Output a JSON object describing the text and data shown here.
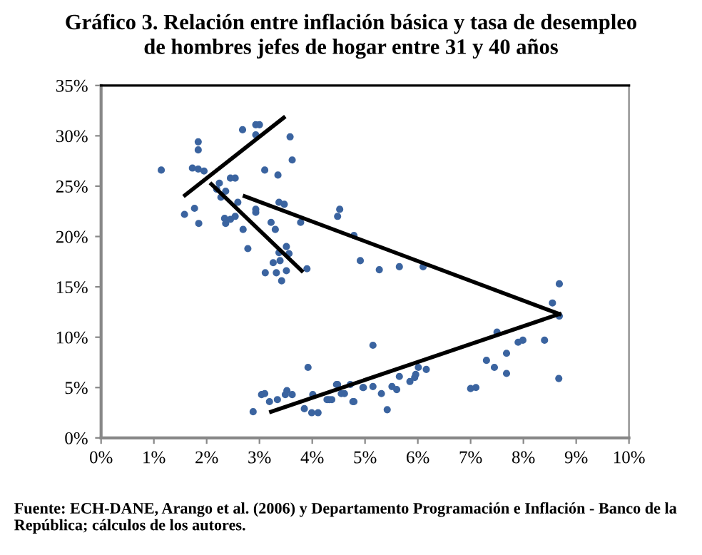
{
  "chart_data": {
    "type": "scatter",
    "title": "Gráfico 3. Relación entre inflación básica y tasa de desempleo\nde hombres jefes de hogar entre 31 y 40 años",
    "annotations": [
      "Fuente: ECH-DANE, Arango et al. (2006) y Departamento Programación e Inflación - Banco de la República; cálculos de los autores."
    ],
    "xlim": [
      0,
      10
    ],
    "ylim": [
      0,
      35
    ],
    "xticks": [
      {
        "value": 0,
        "label": "0%"
      },
      {
        "value": 1,
        "label": "1%"
      },
      {
        "value": 2,
        "label": "2%"
      },
      {
        "value": 3,
        "label": "3%"
      },
      {
        "value": 4,
        "label": "4%"
      },
      {
        "value": 5,
        "label": "5%"
      },
      {
        "value": 6,
        "label": "6%"
      },
      {
        "value": 7,
        "label": "7%"
      },
      {
        "value": 8,
        "label": "8%"
      },
      {
        "value": 9,
        "label": "9%"
      },
      {
        "value": 10,
        "label": "10%"
      }
    ],
    "yticks": [
      {
        "value": 0,
        "label": "0%"
      },
      {
        "value": 5,
        "label": "5%"
      },
      {
        "value": 10,
        "label": "10%"
      },
      {
        "value": 15,
        "label": "15%"
      },
      {
        "value": 20,
        "label": "20%"
      },
      {
        "value": 25,
        "label": "25%"
      },
      {
        "value": 30,
        "label": "30%"
      },
      {
        "value": 35,
        "label": "35%"
      }
    ],
    "grid": false,
    "legend": false,
    "series": [
      {
        "marker": "circle",
        "color": "#3b64a0",
        "x": [
          1.14,
          1.84,
          1.84,
          1.73,
          1.84,
          1.95,
          1.58,
          1.77,
          1.85,
          2.68,
          2.93,
          3.0,
          2.93,
          3.58,
          3.62,
          3.1,
          3.35,
          2.45,
          2.54,
          2.24,
          2.19,
          2.36,
          2.27,
          2.59,
          2.93,
          2.93,
          3.37,
          3.47,
          2.34,
          2.36,
          2.45,
          2.54,
          2.69,
          3.22,
          3.3,
          2.78,
          3.51,
          3.56,
          3.37,
          3.78,
          4.52,
          4.48,
          4.79,
          3.26,
          3.39,
          3.11,
          3.32,
          3.51,
          3.42,
          3.9,
          4.91,
          5.27,
          5.65,
          6.1,
          8.68,
          8.55,
          8.68,
          5.15,
          7.5,
          7.99,
          7.9,
          8.4,
          7.68,
          7.3,
          7.45,
          7.68,
          8.67,
          7.0,
          7.1,
          5.96,
          6.01,
          6.16,
          5.94,
          5.85,
          5.65,
          5.51,
          5.6,
          5.15,
          4.97,
          5.31,
          5.42,
          4.77,
          4.48,
          4.61,
          4.32,
          2.88,
          3.04,
          3.1,
          3.19,
          3.34,
          3.49,
          3.52,
          3.62,
          3.92,
          3.85,
          3.99,
          4.11,
          4.01,
          4.28,
          4.37,
          4.46,
          4.55,
          4.72,
          4.79,
          4.96
        ],
        "values": [
          26.6,
          29.4,
          28.6,
          26.8,
          26.7,
          26.5,
          22.2,
          22.8,
          21.3,
          30.6,
          31.1,
          31.1,
          30.1,
          29.9,
          27.6,
          26.6,
          26.1,
          25.8,
          25.8,
          25.3,
          24.7,
          24.5,
          23.9,
          23.4,
          22.7,
          22.4,
          23.4,
          23.2,
          21.8,
          21.3,
          21.7,
          22.0,
          20.7,
          21.4,
          20.7,
          18.8,
          19.0,
          18.3,
          18.4,
          21.4,
          22.7,
          22.0,
          20.1,
          17.4,
          17.6,
          16.4,
          16.4,
          16.6,
          15.6,
          16.8,
          17.6,
          16.7,
          17.0,
          17.0,
          15.3,
          13.4,
          12.1,
          9.2,
          10.5,
          9.7,
          9.5,
          9.7,
          8.4,
          7.7,
          7.0,
          6.4,
          5.9,
          4.9,
          5.0,
          6.3,
          7.0,
          6.8,
          6.0,
          5.6,
          6.1,
          5.1,
          4.8,
          5.1,
          5.0,
          4.4,
          2.8,
          3.6,
          5.3,
          4.4,
          3.8,
          2.6,
          4.3,
          4.4,
          3.6,
          3.8,
          4.3,
          4.7,
          4.3,
          7.0,
          2.9,
          2.5,
          2.5,
          4.3,
          3.8,
          3.8,
          5.3,
          4.4,
          5.3,
          3.6,
          5.0
        ]
      },
      {
        "type": "line",
        "color": "#000000",
        "marker": "none",
        "x": [
          1.59,
          3.46
        ],
        "values": [
          24.1,
          31.8
        ]
      },
      {
        "type": "line",
        "color": "#000000",
        "marker": "none",
        "x": [
          2.09,
          3.8
        ],
        "values": [
          25.2,
          16.6
        ]
      },
      {
        "type": "line",
        "color": "#000000",
        "marker": "none",
        "x": [
          2.72,
          8.68
        ],
        "values": [
          24.0,
          12.3
        ]
      },
      {
        "type": "line",
        "color": "#000000",
        "marker": "none",
        "x": [
          3.22,
          8.68
        ],
        "values": [
          2.6,
          12.3
        ]
      }
    ]
  }
}
